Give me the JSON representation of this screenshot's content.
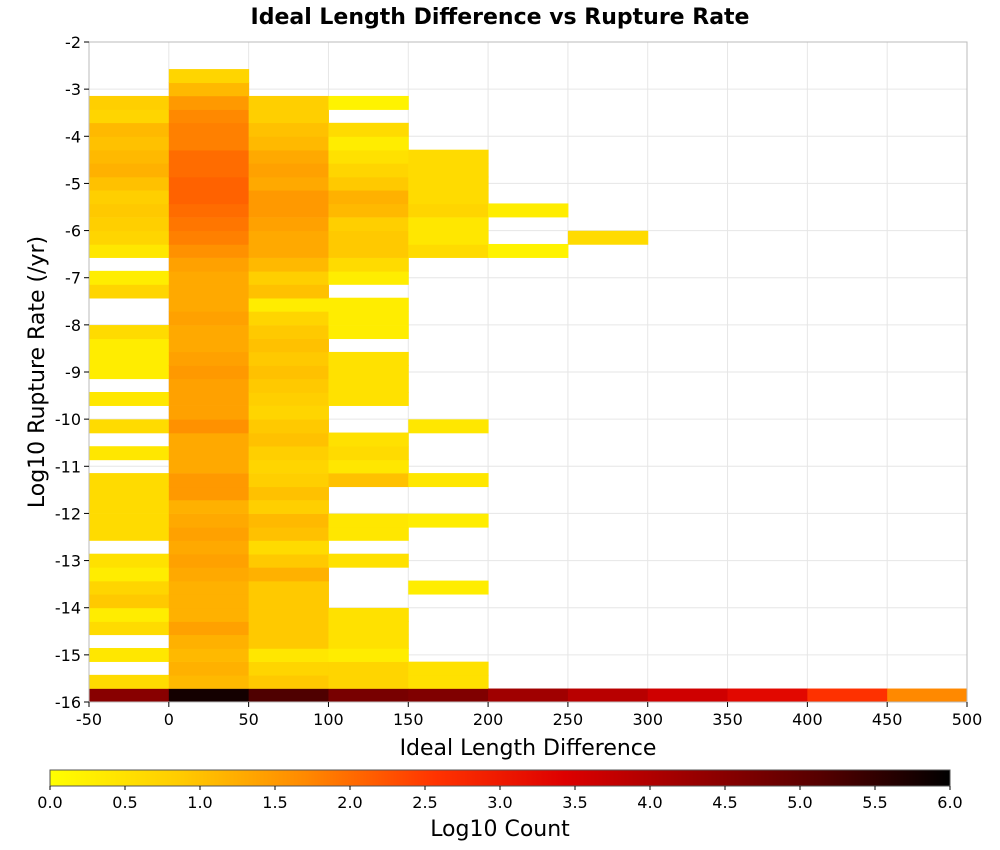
{
  "chart_data": {
    "type": "heatmap",
    "title": "Ideal Length Difference vs Rupture Rate",
    "xlabel": "Ideal Length Difference",
    "ylabel": "Log10 Rupture Rate (/yr)",
    "xlim": [
      -50,
      500
    ],
    "ylim": [
      -16,
      -2
    ],
    "x_ticks": [
      "-50",
      "0",
      "50",
      "100",
      "150",
      "200",
      "250",
      "300",
      "350",
      "400",
      "450",
      "500"
    ],
    "y_ticks": [
      "-16",
      "-15",
      "-14",
      "-13",
      "-12",
      "-11",
      "-10",
      "-9",
      "-8",
      "-7",
      "-6",
      "-5",
      "-4",
      "-3",
      "-2"
    ],
    "x_bin_width": 50,
    "y_bin_height": 0.2857,
    "colorbar": {
      "label": "Log10 Count",
      "range": [
        0.0,
        6.0
      ],
      "ticks": [
        "0.0",
        "0.5",
        "1.0",
        "1.5",
        "2.0",
        "2.5",
        "3.0",
        "3.5",
        "4.0",
        "4.5",
        "5.0",
        "5.5",
        "6.0"
      ],
      "colormap": [
        "#ffff00",
        "#ffcc00",
        "#ff8800",
        "#ff3300",
        "#dd0000",
        "#990000",
        "#550000",
        "#000000"
      ]
    },
    "grid": true,
    "columns": [
      {
        "x_start": -50,
        "cells": [
          [
            -16.0,
            4.5
          ],
          [
            -15.71,
            0.6
          ],
          [
            -15.14,
            0.4
          ],
          [
            -14.57,
            0.6
          ],
          [
            -14.29,
            0.3
          ],
          [
            -14.0,
            0.9
          ],
          [
            -13.71,
            0.7
          ],
          [
            -13.43,
            0.3
          ],
          [
            -13.14,
            0.5
          ],
          [
            -12.57,
            0.6
          ],
          [
            -12.29,
            0.6
          ],
          [
            -12.0,
            0.6
          ],
          [
            -11.71,
            0.6
          ],
          [
            -11.43,
            0.6
          ],
          [
            -10.86,
            0.4
          ],
          [
            -10.29,
            0.6
          ],
          [
            -9.71,
            0.4
          ],
          [
            -9.14,
            0.3
          ],
          [
            -8.86,
            0.3
          ],
          [
            -8.57,
            0.3
          ],
          [
            -8.29,
            0.6
          ],
          [
            -7.43,
            0.7
          ],
          [
            -7.14,
            0.3
          ],
          [
            -6.57,
            0.4
          ],
          [
            -6.29,
            0.7
          ],
          [
            -6.0,
            0.8
          ],
          [
            -5.71,
            0.9
          ],
          [
            -5.43,
            0.8
          ],
          [
            -5.14,
            1.0
          ],
          [
            -4.86,
            1.2
          ],
          [
            -4.57,
            1.1
          ],
          [
            -4.29,
            1.0
          ],
          [
            -4.0,
            1.1
          ],
          [
            -3.71,
            0.7
          ],
          [
            -3.43,
            0.8
          ]
        ]
      },
      {
        "x_start": 0,
        "cells": [
          [
            -16.0,
            5.8
          ],
          [
            -15.71,
            1.1
          ],
          [
            -15.43,
            1.2
          ],
          [
            -15.14,
            1.1
          ],
          [
            -14.86,
            1.2
          ],
          [
            -14.57,
            1.4
          ],
          [
            -14.29,
            1.2
          ],
          [
            -14.0,
            1.2
          ],
          [
            -13.71,
            1.2
          ],
          [
            -13.43,
            1.3
          ],
          [
            -13.14,
            1.4
          ],
          [
            -12.86,
            1.3
          ],
          [
            -12.57,
            1.4
          ],
          [
            -12.29,
            1.3
          ],
          [
            -12.0,
            1.2
          ],
          [
            -11.71,
            1.5
          ],
          [
            -11.43,
            1.5
          ],
          [
            -11.14,
            1.3
          ],
          [
            -10.86,
            1.3
          ],
          [
            -10.57,
            1.3
          ],
          [
            -10.29,
            1.6
          ],
          [
            -10.0,
            1.4
          ],
          [
            -9.71,
            1.4
          ],
          [
            -9.43,
            1.4
          ],
          [
            -9.14,
            1.5
          ],
          [
            -8.86,
            1.4
          ],
          [
            -8.57,
            1.3
          ],
          [
            -8.29,
            1.3
          ],
          [
            -8.0,
            1.4
          ],
          [
            -7.71,
            1.3
          ],
          [
            -7.43,
            1.3
          ],
          [
            -7.14,
            1.3
          ],
          [
            -6.86,
            1.4
          ],
          [
            -6.57,
            1.6
          ],
          [
            -6.29,
            1.8
          ],
          [
            -6.0,
            1.9
          ],
          [
            -5.71,
            2.0
          ],
          [
            -5.43,
            2.1
          ],
          [
            -5.14,
            2.1
          ],
          [
            -4.86,
            2.0
          ],
          [
            -4.57,
            2.0
          ],
          [
            -4.29,
            1.8
          ],
          [
            -4.0,
            1.8
          ],
          [
            -3.71,
            1.7
          ],
          [
            -3.43,
            1.5
          ],
          [
            -3.14,
            1.1
          ],
          [
            -2.86,
            0.7
          ]
        ]
      },
      {
        "x_start": 50,
        "cells": [
          [
            -16.0,
            5.2
          ],
          [
            -15.71,
            0.9
          ],
          [
            -15.43,
            0.7
          ],
          [
            -15.14,
            0.4
          ],
          [
            -14.86,
            0.9
          ],
          [
            -14.57,
            0.9
          ],
          [
            -14.29,
            0.9
          ],
          [
            -14.0,
            0.9
          ],
          [
            -13.71,
            0.9
          ],
          [
            -13.43,
            1.2
          ],
          [
            -13.14,
            0.9
          ],
          [
            -12.86,
            0.6
          ],
          [
            -12.57,
            1.0
          ],
          [
            -12.29,
            1.1
          ],
          [
            -12.0,
            0.8
          ],
          [
            -11.71,
            1.0
          ],
          [
            -11.43,
            0.8
          ],
          [
            -11.14,
            0.7
          ],
          [
            -10.86,
            0.8
          ],
          [
            -10.57,
            1.0
          ],
          [
            -10.29,
            0.9
          ],
          [
            -10.0,
            0.7
          ],
          [
            -9.71,
            0.8
          ],
          [
            -9.43,
            0.9
          ],
          [
            -9.14,
            1.0
          ],
          [
            -8.86,
            0.9
          ],
          [
            -8.57,
            1.0
          ],
          [
            -8.29,
            0.9
          ],
          [
            -8.0,
            0.7
          ],
          [
            -7.71,
            0.3
          ],
          [
            -7.43,
            1.0
          ],
          [
            -7.14,
            0.8
          ],
          [
            -6.86,
            1.1
          ],
          [
            -6.57,
            1.3
          ],
          [
            -6.29,
            1.3
          ],
          [
            -6.0,
            1.4
          ],
          [
            -5.71,
            1.5
          ],
          [
            -5.43,
            1.5
          ],
          [
            -5.14,
            1.3
          ],
          [
            -4.86,
            1.4
          ],
          [
            -4.57,
            1.3
          ],
          [
            -4.29,
            1.1
          ],
          [
            -4.0,
            1.0
          ],
          [
            -3.71,
            0.8
          ],
          [
            -3.43,
            0.8
          ]
        ]
      },
      {
        "x_start": 100,
        "cells": [
          [
            -16.0,
            4.7
          ],
          [
            -15.71,
            0.7
          ],
          [
            -15.43,
            0.7
          ],
          [
            -15.14,
            0.3
          ],
          [
            -14.86,
            0.5
          ],
          [
            -14.57,
            0.5
          ],
          [
            -14.29,
            0.5
          ],
          [
            -13.14,
            0.5
          ],
          [
            -12.57,
            0.4
          ],
          [
            -12.29,
            0.4
          ],
          [
            -11.43,
            1.0
          ],
          [
            -11.14,
            0.4
          ],
          [
            -10.86,
            0.6
          ],
          [
            -10.57,
            0.5
          ],
          [
            -9.71,
            0.5
          ],
          [
            -9.43,
            0.5
          ],
          [
            -9.14,
            0.5
          ],
          [
            -8.86,
            0.5
          ],
          [
            -8.29,
            0.3
          ],
          [
            -8.0,
            0.3
          ],
          [
            -7.71,
            0.3
          ],
          [
            -7.14,
            0.3
          ],
          [
            -6.86,
            0.6
          ],
          [
            -6.57,
            0.9
          ],
          [
            -6.29,
            0.9
          ],
          [
            -6.0,
            0.8
          ],
          [
            -5.71,
            1.1
          ],
          [
            -5.43,
            1.2
          ],
          [
            -5.14,
            0.9
          ],
          [
            -4.86,
            0.7
          ],
          [
            -4.57,
            0.5
          ],
          [
            -4.29,
            0.3
          ],
          [
            -4.0,
            0.6
          ],
          [
            -3.43,
            0.2
          ]
        ]
      },
      {
        "x_start": 150,
        "cells": [
          [
            -16.0,
            4.6
          ],
          [
            -15.71,
            0.5
          ],
          [
            -15.43,
            0.5
          ],
          [
            -13.71,
            0.3
          ],
          [
            -12.29,
            0.3
          ],
          [
            -11.43,
            0.4
          ],
          [
            -10.29,
            0.4
          ],
          [
            -6.57,
            0.6
          ],
          [
            -6.29,
            0.4
          ],
          [
            -6.0,
            0.4
          ],
          [
            -5.71,
            0.7
          ],
          [
            -5.43,
            0.6
          ],
          [
            -5.14,
            0.6
          ],
          [
            -4.86,
            0.6
          ],
          [
            -4.57,
            0.6
          ]
        ]
      },
      {
        "x_start": 200,
        "cells": [
          [
            -16.0,
            4.2
          ],
          [
            -6.57,
            0.2
          ],
          [
            -5.71,
            0.3
          ]
        ]
      },
      {
        "x_start": 250,
        "cells": [
          [
            -16.0,
            3.9
          ],
          [
            -6.29,
            0.6
          ]
        ]
      },
      {
        "x_start": 300,
        "cells": [
          [
            -16.0,
            3.6
          ]
        ]
      },
      {
        "x_start": 350,
        "cells": [
          [
            -16.0,
            3.3
          ]
        ]
      },
      {
        "x_start": 400,
        "cells": [
          [
            -16.0,
            2.6
          ]
        ]
      },
      {
        "x_start": 450,
        "cells": [
          [
            -16.0,
            1.7
          ]
        ]
      }
    ]
  }
}
